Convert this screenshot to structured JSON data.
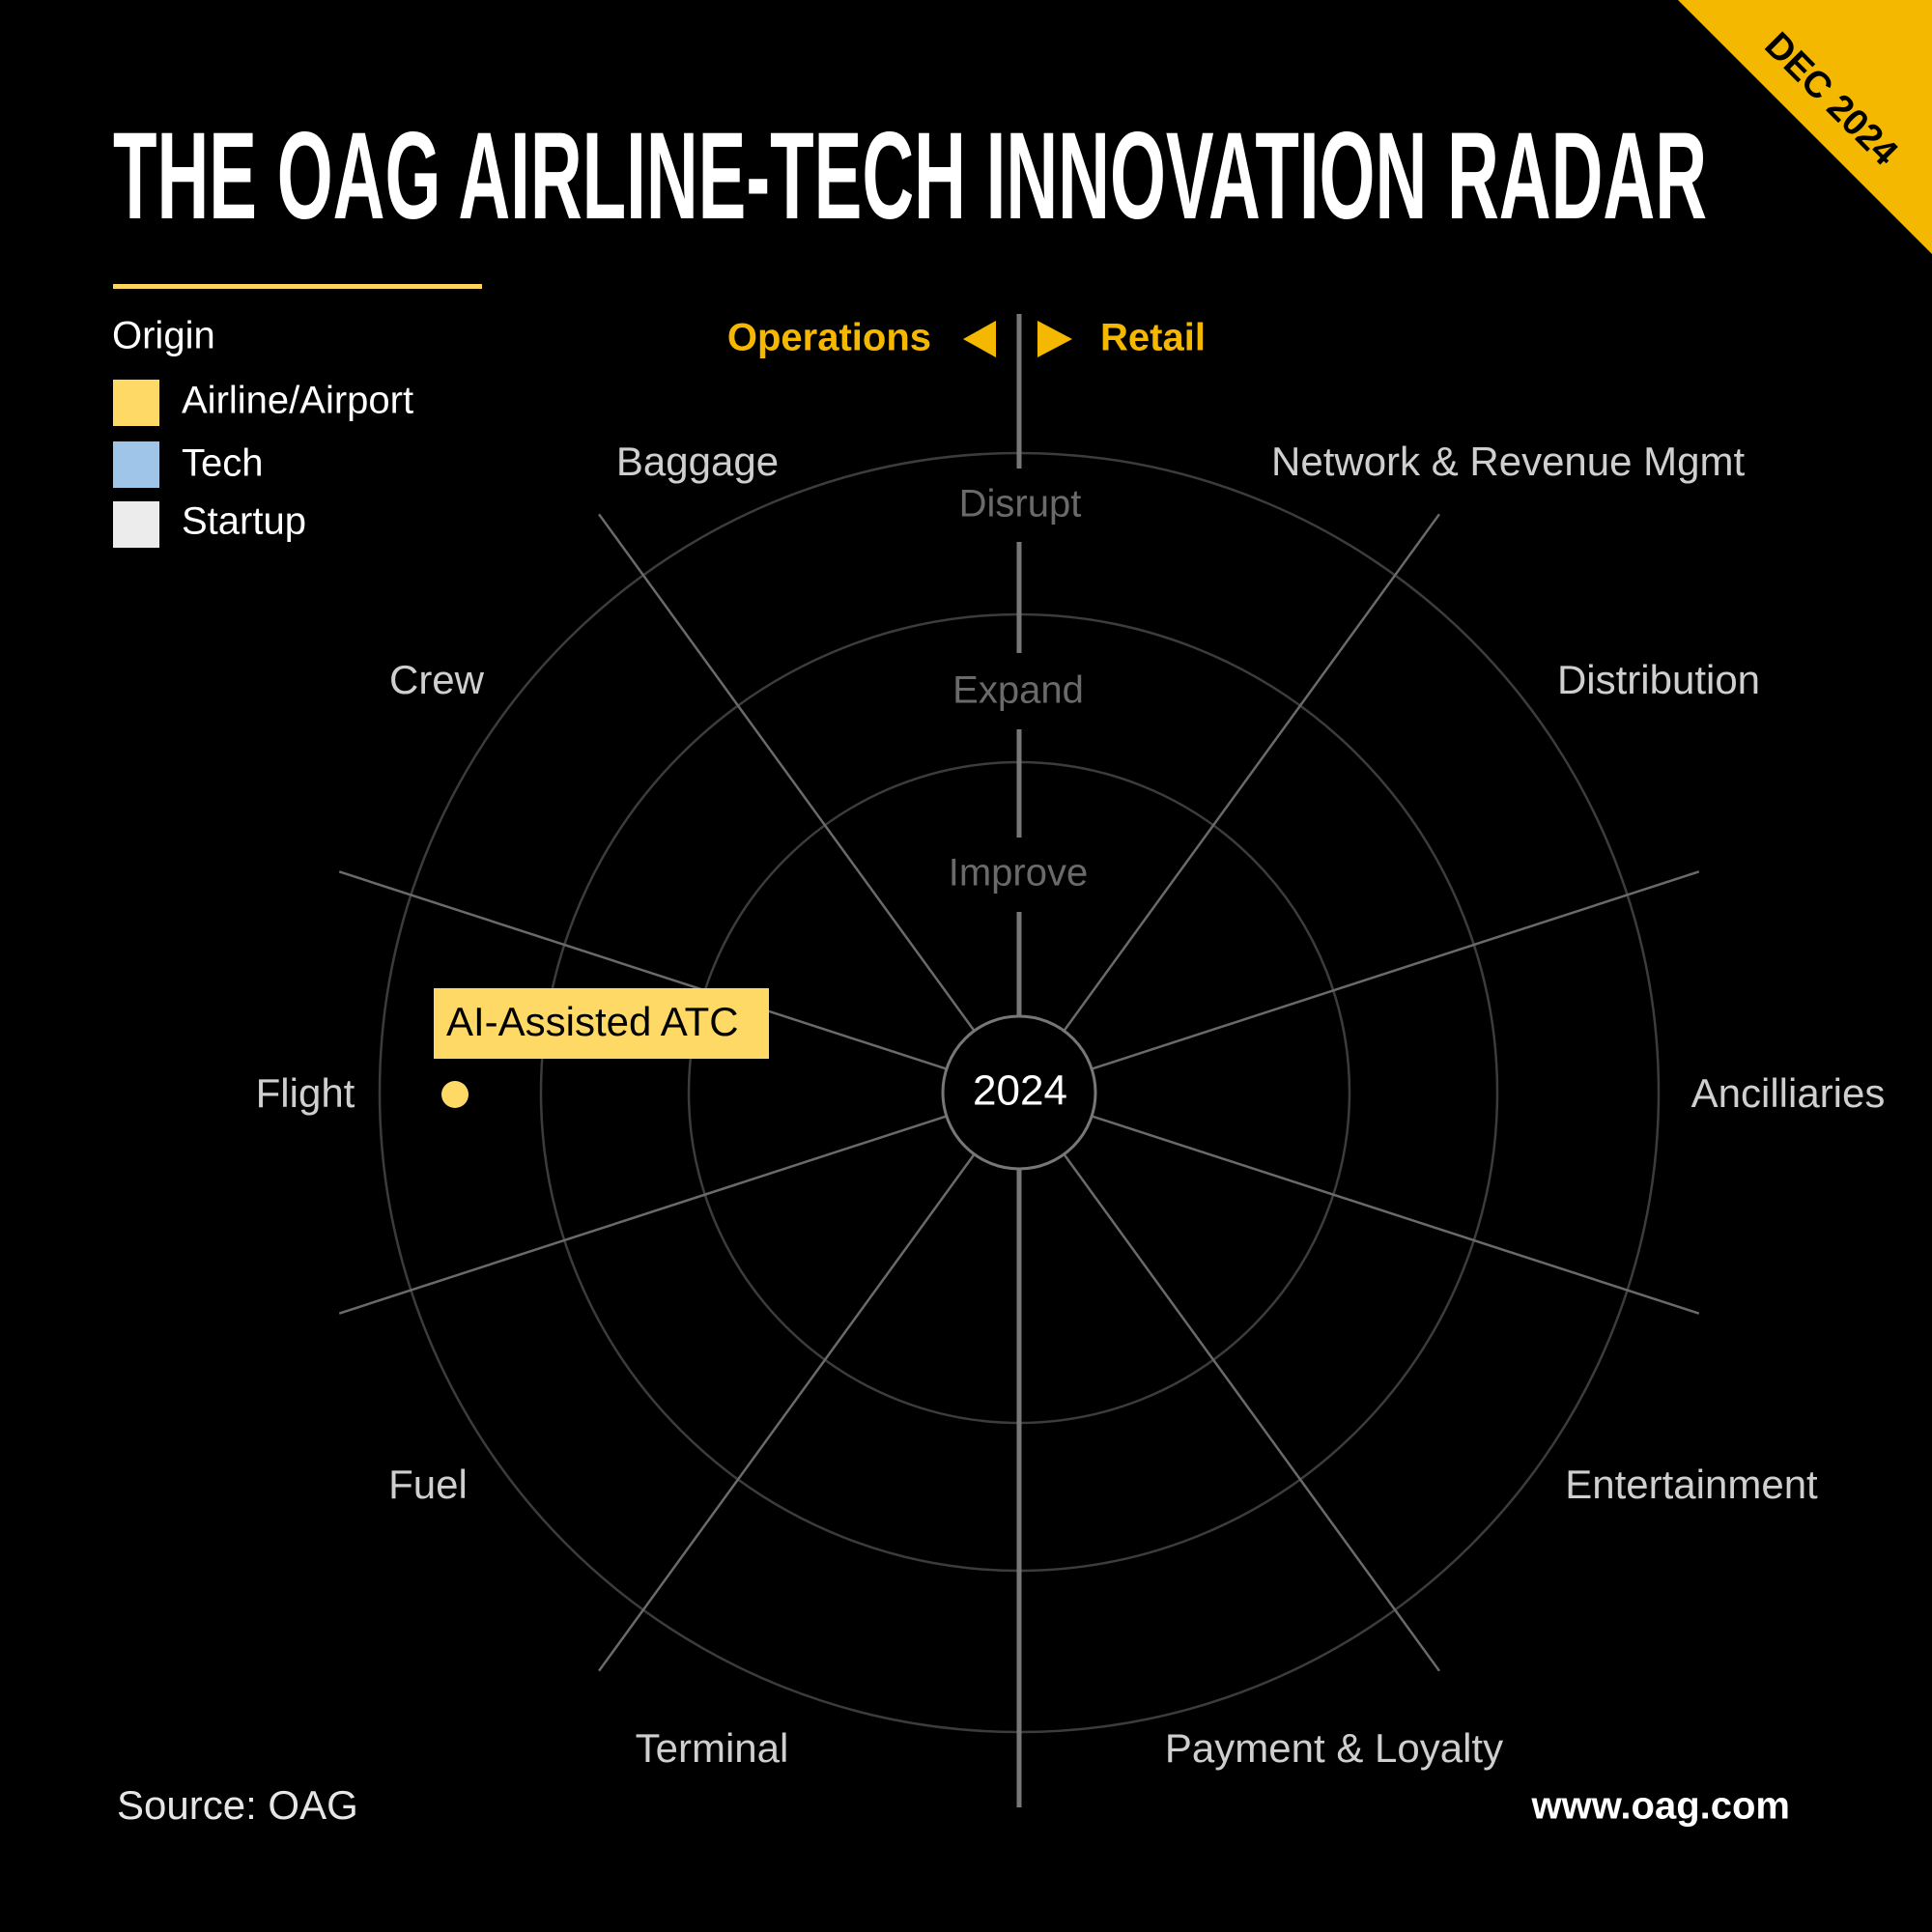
{
  "title": "THE OAG AIRLINE-TECH INNOVATION RADAR",
  "badge": "DEC 2024",
  "legend": {
    "title": "Origin",
    "items": [
      "Airline/Airport",
      "Tech",
      "Startup"
    ]
  },
  "axis": {
    "left": "Operations",
    "right": "Retail"
  },
  "rings": [
    "Disrupt",
    "Expand",
    "Improve"
  ],
  "center": "2024",
  "categories": [
    "Baggage",
    "Network & Revenue Mgmt",
    "Crew",
    "Distribution",
    "Flight",
    "Ancilliaries",
    "Fuel",
    "Entertainment",
    "Terminal",
    "Payment & Loyalty"
  ],
  "items": [
    {
      "label": "AI-Assisted ATC"
    }
  ],
  "footer": {
    "source": "Source: OAG",
    "url": "www.oag.com"
  }
}
